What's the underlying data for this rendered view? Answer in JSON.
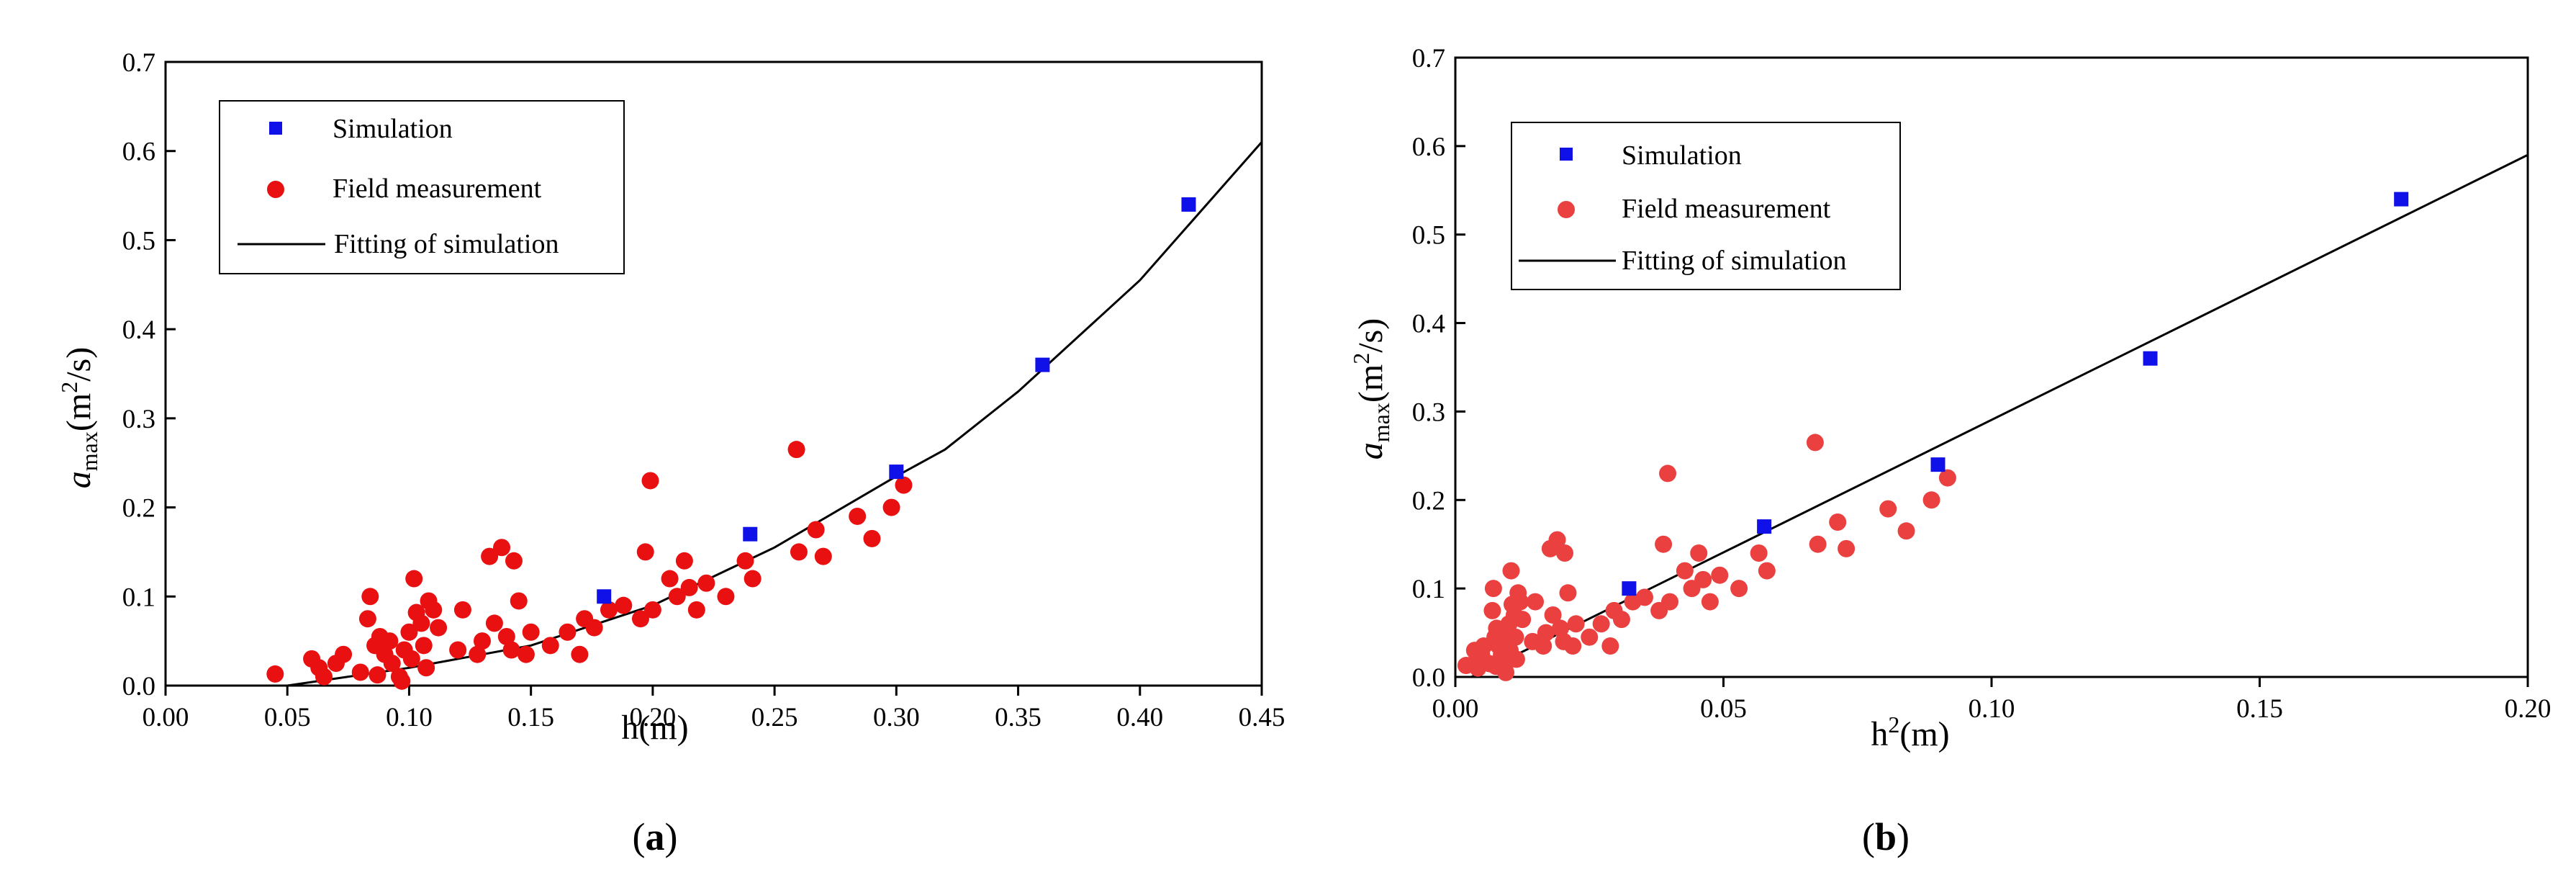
{
  "chart_data": [
    {
      "type": "scatter",
      "panel_label": "a",
      "xlabel": "h(m)",
      "ylabel": {
        "var": "a",
        "sub": "max",
        "unit_pre": "(m",
        "unit_sup": "2",
        "unit_post": "/s)"
      },
      "xlim": [
        0.0,
        0.45
      ],
      "ylim": [
        0.0,
        0.7
      ],
      "xticks": [
        "0.00",
        "0.05",
        "0.10",
        "0.15",
        "0.20",
        "0.25",
        "0.30",
        "0.35",
        "0.40",
        "0.45"
      ],
      "yticks": [
        "0.0",
        "0.1",
        "0.2",
        "0.3",
        "0.4",
        "0.5",
        "0.6",
        "0.7"
      ],
      "legend": {
        "position": "top-left",
        "entries": [
          {
            "label": "Simulation",
            "marker": "square",
            "color": "#1010e8"
          },
          {
            "label": "Field measurement",
            "marker": "circle",
            "color": "#e81010"
          },
          {
            "label": "Fitting of simulation",
            "marker": "line",
            "color": "#000000"
          }
        ]
      },
      "series": [
        {
          "name": "Simulation",
          "color": "#1010e8",
          "points": [
            [
              0.18,
              0.1
            ],
            [
              0.24,
              0.17
            ],
            [
              0.3,
              0.24
            ],
            [
              0.36,
              0.36
            ],
            [
              0.42,
              0.54
            ]
          ]
        },
        {
          "name": "Field measurement",
          "color": "#e81010",
          "points": [
            [
              0.045,
              0.013
            ],
            [
              0.06,
              0.03
            ],
            [
              0.063,
              0.02
            ],
            [
              0.065,
              0.01
            ],
            [
              0.07,
              0.025
            ],
            [
              0.073,
              0.035
            ],
            [
              0.08,
              0.015
            ],
            [
              0.083,
              0.075
            ],
            [
              0.084,
              0.1
            ],
            [
              0.086,
              0.045
            ],
            [
              0.087,
              0.012
            ],
            [
              0.088,
              0.055
            ],
            [
              0.09,
              0.035
            ],
            [
              0.092,
              0.05
            ],
            [
              0.093,
              0.025
            ],
            [
              0.096,
              0.01
            ],
            [
              0.097,
              0.005
            ],
            [
              0.098,
              0.04
            ],
            [
              0.1,
              0.06
            ],
            [
              0.101,
              0.03
            ],
            [
              0.102,
              0.12
            ],
            [
              0.103,
              0.082
            ],
            [
              0.105,
              0.07
            ],
            [
              0.106,
              0.045
            ],
            [
              0.107,
              0.02
            ],
            [
              0.108,
              0.095
            ],
            [
              0.11,
              0.085
            ],
            [
              0.112,
              0.065
            ],
            [
              0.12,
              0.04
            ],
            [
              0.122,
              0.085
            ],
            [
              0.128,
              0.035
            ],
            [
              0.13,
              0.05
            ],
            [
              0.133,
              0.145
            ],
            [
              0.135,
              0.07
            ],
            [
              0.138,
              0.155
            ],
            [
              0.14,
              0.055
            ],
            [
              0.142,
              0.04
            ],
            [
              0.143,
              0.14
            ],
            [
              0.145,
              0.095
            ],
            [
              0.148,
              0.035
            ],
            [
              0.15,
              0.06
            ],
            [
              0.158,
              0.045
            ],
            [
              0.165,
              0.06
            ],
            [
              0.17,
              0.035
            ],
            [
              0.172,
              0.075
            ],
            [
              0.176,
              0.065
            ],
            [
              0.182,
              0.085
            ],
            [
              0.188,
              0.09
            ],
            [
              0.195,
              0.075
            ],
            [
              0.197,
              0.15
            ],
            [
              0.199,
              0.23
            ],
            [
              0.2,
              0.085
            ],
            [
              0.207,
              0.12
            ],
            [
              0.21,
              0.1
            ],
            [
              0.213,
              0.14
            ],
            [
              0.215,
              0.11
            ],
            [
              0.218,
              0.085
            ],
            [
              0.222,
              0.115
            ],
            [
              0.23,
              0.1
            ],
            [
              0.238,
              0.14
            ],
            [
              0.241,
              0.12
            ],
            [
              0.259,
              0.265
            ],
            [
              0.26,
              0.15
            ],
            [
              0.267,
              0.175
            ],
            [
              0.27,
              0.145
            ],
            [
              0.284,
              0.19
            ],
            [
              0.29,
              0.165
            ],
            [
              0.298,
              0.2
            ],
            [
              0.303,
              0.225
            ]
          ]
        },
        {
          "name": "Fitting of simulation",
          "color": "#000000",
          "type": "line",
          "points": [
            [
              0.05,
              0.0
            ],
            [
              0.1,
              0.02
            ],
            [
              0.15,
              0.045
            ],
            [
              0.2,
              0.09
            ],
            [
              0.25,
              0.155
            ],
            [
              0.3,
              0.235
            ],
            [
              0.32,
              0.265
            ],
            [
              0.35,
              0.33
            ],
            [
              0.4,
              0.455
            ],
            [
              0.45,
              0.61
            ]
          ]
        }
      ]
    },
    {
      "type": "scatter",
      "panel_label": "b",
      "xlabel": {
        "pre": "h",
        "sup": "2",
        "post": "(m)"
      },
      "ylabel": {
        "var": "a",
        "sub": "max",
        "unit_pre": "(m",
        "unit_sup": "2",
        "unit_post": "/s)"
      },
      "xlim": [
        0.0,
        0.2
      ],
      "ylim": [
        0.0,
        0.7
      ],
      "xticks": [
        "0.00",
        "0.05",
        "0.10",
        "0.15",
        "0.20"
      ],
      "yticks": [
        "0.0",
        "0.1",
        "0.2",
        "0.3",
        "0.4",
        "0.5",
        "0.6",
        "0.7"
      ],
      "legend": {
        "position": "top-left",
        "entries": [
          {
            "label": "Simulation",
            "marker": "square",
            "color": "#1010e8"
          },
          {
            "label": "Field measurement",
            "marker": "circle",
            "color": "#ea4040"
          },
          {
            "label": "Fitting of simulation",
            "marker": "line",
            "color": "#000000"
          }
        ]
      },
      "series": [
        {
          "name": "Simulation",
          "color": "#1010e8",
          "points": [
            [
              0.0324,
              0.1
            ],
            [
              0.0576,
              0.17
            ],
            [
              0.09,
              0.24
            ],
            [
              0.1296,
              0.36
            ],
            [
              0.1764,
              0.54
            ]
          ]
        },
        {
          "name": "Field measurement",
          "color": "#ea4040",
          "points": [
            [
              0.002,
              0.013
            ],
            [
              0.0036,
              0.03
            ],
            [
              0.004,
              0.02
            ],
            [
              0.0042,
              0.01
            ],
            [
              0.0049,
              0.025
            ],
            [
              0.0053,
              0.035
            ],
            [
              0.0064,
              0.015
            ],
            [
              0.0069,
              0.075
            ],
            [
              0.0071,
              0.1
            ],
            [
              0.0074,
              0.045
            ],
            [
              0.0076,
              0.012
            ],
            [
              0.0077,
              0.055
            ],
            [
              0.0081,
              0.035
            ],
            [
              0.0085,
              0.05
            ],
            [
              0.0086,
              0.025
            ],
            [
              0.0092,
              0.01
            ],
            [
              0.0094,
              0.005
            ],
            [
              0.0096,
              0.04
            ],
            [
              0.01,
              0.06
            ],
            [
              0.0102,
              0.03
            ],
            [
              0.0104,
              0.12
            ],
            [
              0.0106,
              0.082
            ],
            [
              0.011,
              0.07
            ],
            [
              0.0112,
              0.045
            ],
            [
              0.0114,
              0.02
            ],
            [
              0.0117,
              0.095
            ],
            [
              0.0121,
              0.085
            ],
            [
              0.0125,
              0.065
            ],
            [
              0.0144,
              0.04
            ],
            [
              0.0149,
              0.085
            ],
            [
              0.0164,
              0.035
            ],
            [
              0.0169,
              0.05
            ],
            [
              0.0177,
              0.145
            ],
            [
              0.0182,
              0.07
            ],
            [
              0.019,
              0.155
            ],
            [
              0.0196,
              0.055
            ],
            [
              0.0202,
              0.04
            ],
            [
              0.0204,
              0.14
            ],
            [
              0.021,
              0.095
            ],
            [
              0.0219,
              0.035
            ],
            [
              0.0225,
              0.06
            ],
            [
              0.025,
              0.045
            ],
            [
              0.0272,
              0.06
            ],
            [
              0.0289,
              0.035
            ],
            [
              0.0296,
              0.075
            ],
            [
              0.031,
              0.065
            ],
            [
              0.0331,
              0.085
            ],
            [
              0.0353,
              0.09
            ],
            [
              0.038,
              0.075
            ],
            [
              0.0388,
              0.15
            ],
            [
              0.0396,
              0.23
            ],
            [
              0.04,
              0.085
            ],
            [
              0.0428,
              0.12
            ],
            [
              0.0441,
              0.1
            ],
            [
              0.0454,
              0.14
            ],
            [
              0.0462,
              0.11
            ],
            [
              0.0475,
              0.085
            ],
            [
              0.0493,
              0.115
            ],
            [
              0.0529,
              0.1
            ],
            [
              0.0566,
              0.14
            ],
            [
              0.0581,
              0.12
            ],
            [
              0.0671,
              0.265
            ],
            [
              0.0676,
              0.15
            ],
            [
              0.0713,
              0.175
            ],
            [
              0.0729,
              0.145
            ],
            [
              0.0807,
              0.19
            ],
            [
              0.0841,
              0.165
            ],
            [
              0.0888,
              0.2
            ],
            [
              0.0918,
              0.225
            ]
          ]
        },
        {
          "name": "Fitting of simulation",
          "color": "#000000",
          "type": "line",
          "points": [
            [
              0.003,
              0.0
            ],
            [
              0.2,
              0.59
            ]
          ]
        }
      ]
    }
  ]
}
